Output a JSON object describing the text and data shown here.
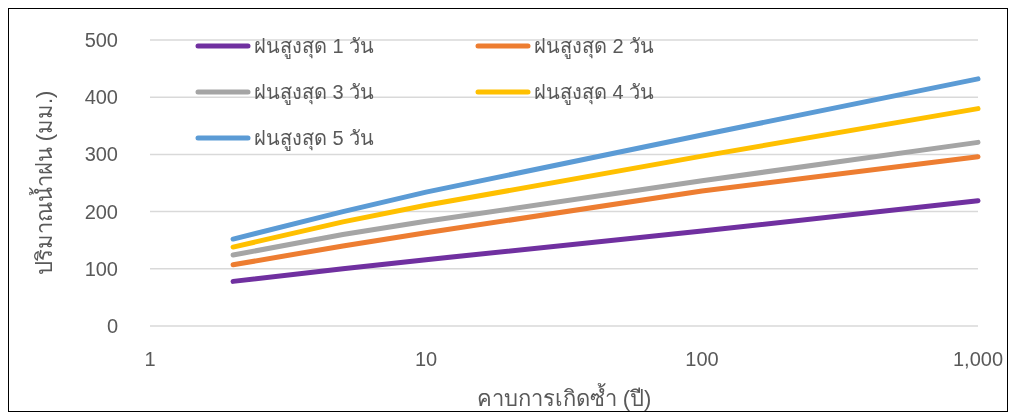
{
  "chart_data": {
    "type": "line",
    "xlabel": "คาบการเกิดซ้ำ (ปี)",
    "ylabel": "ปริมาณน้ำฝน (มม.)",
    "log": "x",
    "x": [
      2,
      5,
      10,
      100,
      1000
    ],
    "xlim": [
      1,
      1000
    ],
    "xticks": [
      1,
      10,
      100,
      {
        "value": 1000,
        "label": "1,000"
      }
    ],
    "ylim": [
      0,
      500
    ],
    "yticks": [
      0,
      100,
      200,
      300,
      400,
      500
    ],
    "grid": "y",
    "legend": "top left",
    "line_style": "solid",
    "series": [
      {
        "name": "ฝนสูงสุด 1 วัน",
        "color": "#7030a0",
        "values": [
          78,
          100,
          116,
          166,
          219
        ]
      },
      {
        "name": "ฝนสูงสุด 2 วัน",
        "color": "#ed7d31",
        "values": [
          107,
          140,
          163,
          236,
          296
        ]
      },
      {
        "name": "ฝนสูงสุด 3 วัน",
        "color": "#a5a5a5",
        "values": [
          124,
          160,
          183,
          254,
          321
        ]
      },
      {
        "name": "ฝนสูงสุด 4 วัน",
        "color": "#ffc000",
        "values": [
          138,
          182,
          211,
          297,
          380
        ]
      },
      {
        "name": "ฝนสูงสุด 5 วัน",
        "color": "#5b9bd5",
        "values": [
          152,
          200,
          234,
          334,
          432
        ]
      }
    ]
  }
}
